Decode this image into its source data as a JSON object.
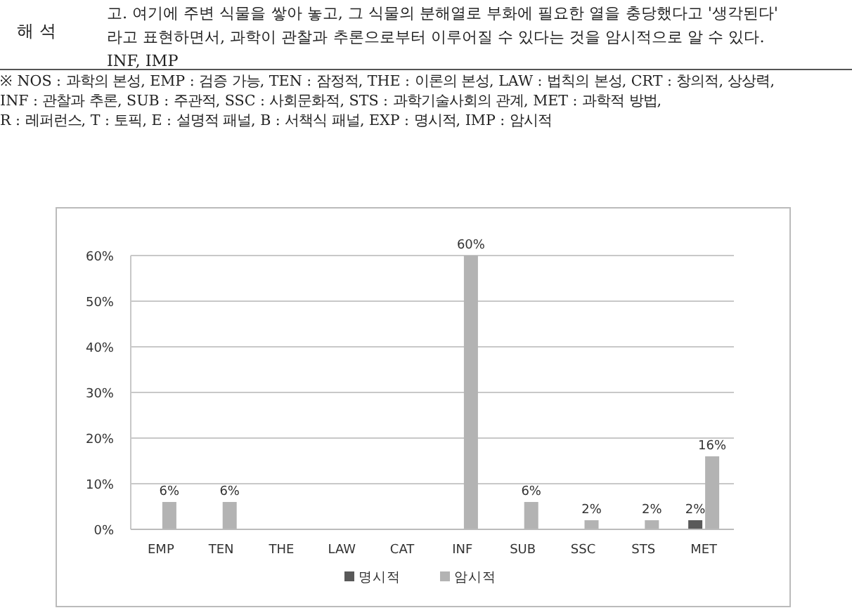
{
  "chart_data": {
    "type": "bar",
    "annotations": [
      "해 석",
      "고. 여기에 주변 식물을 쌓아 놓고, 그 식물의 분해열로 부화에 필요한 열을 충당했다고 '생각된다'",
      "라고 표현하면서, 과학이 관찰과 추론으로부터 이루어질 수 있다는 것을 암시적으로 알 수 있다.",
      "INF, IMP",
      "※ NOS : 과학의 본성, EMP : 검증 가능, TEN : 잠정적, THE : 이론의 본성, LAW : 법칙의 본성, CRT : 창의적, 상상력,",
      "INF : 관찰과 추론, SUB : 주관적, SSC : 사회문화적, STS : 과학기술사회의 관계, MET : 과학적 방법,",
      "R : 레퍼런스, T : 토픽, E : 설명적 패널, B : 서책식 패널, EXP : 명시적, IMP : 암시적"
    ],
    "categories": [
      "EMP",
      "TEN",
      "THE",
      "LAW",
      "CAT",
      "INF",
      "SUB",
      "SSC",
      "STS",
      "MET"
    ],
    "series": [
      {
        "name": "명시적",
        "color": "#595959",
        "values": [
          0,
          0,
          0,
          0,
          0,
          0,
          0,
          0,
          0,
          2
        ],
        "value_labels": [
          null,
          null,
          null,
          null,
          null,
          null,
          null,
          null,
          null,
          "2%"
        ]
      },
      {
        "name": "암시적",
        "color": "#b3b3b3",
        "values": [
          6,
          6,
          0,
          0,
          0,
          60,
          6,
          2,
          2,
          16
        ],
        "value_labels": [
          "6%",
          "6%",
          null,
          null,
          null,
          "60%",
          "6%",
          "2%",
          "2%",
          "16%"
        ]
      }
    ],
    "ylim": [
      0,
      60
    ],
    "yticks": [
      {
        "value": 0,
        "label": "0%"
      },
      {
        "value": 10,
        "label": "10%"
      },
      {
        "value": 20,
        "label": "20%"
      },
      {
        "value": 30,
        "label": "30%"
      },
      {
        "value": 40,
        "label": "40%"
      },
      {
        "value": 50,
        "label": "50%"
      },
      {
        "value": 60,
        "label": "60%"
      }
    ],
    "grid": "y",
    "legend": "bottom"
  }
}
